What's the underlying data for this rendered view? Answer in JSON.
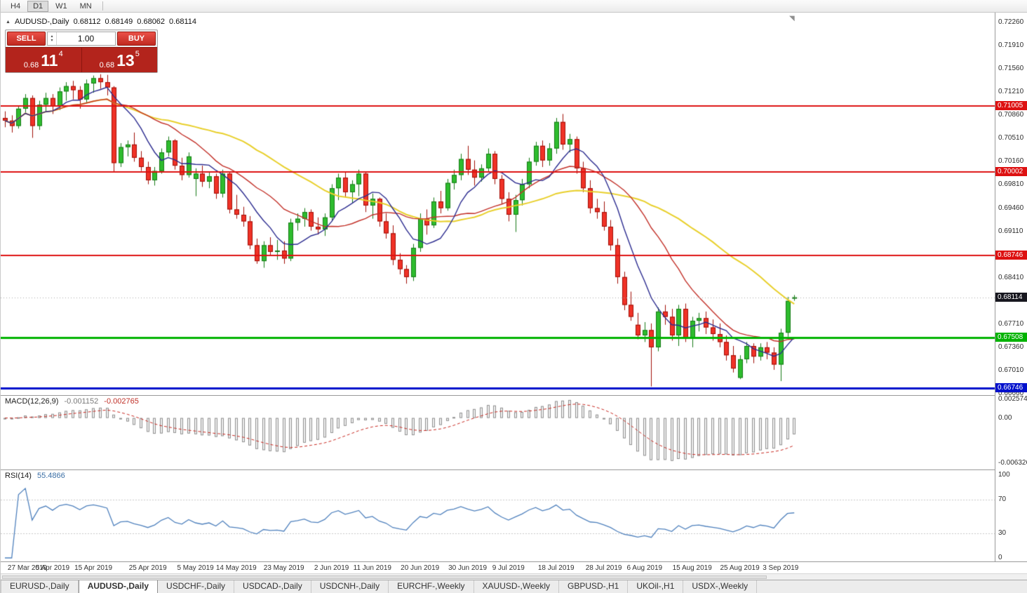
{
  "toolbar": {
    "timeframes": [
      {
        "label": "H4",
        "active": false
      },
      {
        "label": "D1",
        "active": true
      },
      {
        "label": "W1",
        "active": false
      },
      {
        "label": "MN",
        "active": false
      }
    ]
  },
  "chart_header": {
    "symbol": "AUDUSD-,Daily",
    "open": "0.68112",
    "high": "0.68149",
    "low": "0.68062",
    "close": "0.68114"
  },
  "trade_panel": {
    "sell_label": "SELL",
    "buy_label": "BUY",
    "volume": "1.00",
    "sell_price": {
      "prefix": "0.68",
      "big": "11",
      "sup": "4"
    },
    "buy_price": {
      "prefix": "0.68",
      "big": "13",
      "sup": "5"
    }
  },
  "macd_header": {
    "name": "MACD(12,26,9)",
    "main_value": "-0.001152",
    "signal_value": "-0.002765"
  },
  "rsi_header": {
    "name": "RSI(14)",
    "value": "55.4866"
  },
  "icons": {
    "oct_toggle": "▲",
    "spin_up": "▴",
    "spin_down": "▾",
    "shift_marker": "◥"
  },
  "tabs": [
    {
      "label": "EURUSD-,Daily",
      "active": false
    },
    {
      "label": "AUDUSD-,Daily",
      "active": true
    },
    {
      "label": "USDCHF-,Daily",
      "active": false
    },
    {
      "label": "USDCAD-,Daily",
      "active": false
    },
    {
      "label": "USDCNH-,Daily",
      "active": false
    },
    {
      "label": "EURCHF-,Weekly",
      "active": false
    },
    {
      "label": "XAUUSD-,Weekly",
      "active": false
    },
    {
      "label": "GBPUSD-,H1",
      "active": false
    },
    {
      "label": "UKOil-,H1",
      "active": false
    },
    {
      "label": "USDX-,Weekly",
      "active": false
    }
  ],
  "chart_data": {
    "type": "candlestick",
    "title": "AUDUSD-,Daily",
    "symbol": "AUDUSD-",
    "timeframe": "Daily",
    "current_price": {
      "value": 0.68114,
      "line_color": "#a8a8a8"
    },
    "candle_colors": {
      "up_fill": "#2ebc2e",
      "up_border": "#157a15",
      "down_fill": "#f03227",
      "down_border": "#a00d05"
    },
    "horizontal_lines": [
      {
        "price": 0.71005,
        "color": "#dd1111",
        "width": 2
      },
      {
        "price": 0.70002,
        "color": "#dd1111",
        "width": 2
      },
      {
        "price": 0.68746,
        "color": "#dd1111",
        "width": 2
      },
      {
        "price": 0.67508,
        "color": "#00b300",
        "width": 3
      },
      {
        "price": 0.66746,
        "color": "#0010cc",
        "width": 3
      }
    ],
    "y_axis": {
      "ticks": [
        "0.72260",
        "0.71910",
        "0.71560",
        "0.71210",
        "0.70860",
        "0.70510",
        "0.70160",
        "0.69810",
        "0.69460",
        "0.69110",
        "0.68410",
        "0.67710",
        "0.67360",
        "0.67010",
        "0.66660"
      ],
      "tags": [
        {
          "text": "0.71005",
          "price": 0.71005,
          "bg": "#dd1111"
        },
        {
          "text": "0.70002",
          "price": 0.70002,
          "bg": "#dd1111"
        },
        {
          "text": "0.68746",
          "price": 0.68746,
          "bg": "#dd1111"
        },
        {
          "text": "0.68114",
          "price": 0.68114,
          "bg": "#17171f"
        },
        {
          "text": "0.67508",
          "price": 0.67508,
          "bg": "#00b300"
        },
        {
          "text": "0.66746",
          "price": 0.66746,
          "bg": "#0010cc"
        }
      ]
    },
    "x_axis_labels": [
      {
        "label": "27 Mar 2019",
        "index": 0
      },
      {
        "label": "5 Apr 2019",
        "index": 7
      },
      {
        "label": "15 Apr 2019",
        "index": 13
      },
      {
        "label": "25 Apr 2019",
        "index": 21
      },
      {
        "label": "5 May 2019",
        "index": 28
      },
      {
        "label": "14 May 2019",
        "index": 34
      },
      {
        "label": "23 May 2019",
        "index": 41
      },
      {
        "label": "2 Jun 2019",
        "index": 48
      },
      {
        "label": "11 Jun 2019",
        "index": 54
      },
      {
        "label": "20 Jun 2019",
        "index": 61
      },
      {
        "label": "30 Jun 2019",
        "index": 68
      },
      {
        "label": "9 Jul 2019",
        "index": 74
      },
      {
        "label": "18 Jul 2019",
        "index": 81
      },
      {
        "label": "28 Jul 2019",
        "index": 88
      },
      {
        "label": "6 Aug 2019",
        "index": 94
      },
      {
        "label": "15 Aug 2019",
        "index": 101
      },
      {
        "label": "25 Aug 2019",
        "index": 108
      },
      {
        "label": "3 Sep 2019",
        "index": 114
      }
    ],
    "moving_averages": [
      {
        "name": "ma-slow",
        "period": 34,
        "color": "#e8cf2a",
        "width": 2
      },
      {
        "name": "ma-medium",
        "period": 17,
        "color": "#c23028",
        "width": 1.4
      },
      {
        "name": "ma-fast",
        "period": 8,
        "color": "#2b2b8f",
        "width": 1.4
      }
    ],
    "indicators": [
      {
        "type": "MACD",
        "params": [
          12,
          26,
          9
        ],
        "values": [
          -0.001152,
          -0.002765
        ],
        "histogram_fill": "#f0f0f0",
        "histogram_border": "#8f8f8f",
        "signal_color": "#c82820",
        "axis_labels": [
          {
            "text": "0.002574",
            "value": 0.002574
          },
          {
            "text": "0.00",
            "value": 0
          },
          {
            "text": "-0.006326",
            "value": -0.006326
          }
        ]
      },
      {
        "type": "RSI",
        "params": [
          14
        ],
        "value": 55.4866,
        "line_color": "#4f81bd",
        "levels": [
          70,
          30
        ],
        "axis_labels": [
          {
            "text": "100",
            "value": 100
          },
          {
            "text": "70",
            "value": 70
          },
          {
            "text": "30",
            "value": 30
          },
          {
            "text": "0",
            "value": 0
          }
        ]
      }
    ],
    "candles": [
      [
        0.7082,
        0.7092,
        0.7068,
        0.7078
      ],
      [
        0.7078,
        0.7086,
        0.706,
        0.707
      ],
      [
        0.707,
        0.71,
        0.7066,
        0.7096
      ],
      [
        0.7096,
        0.7118,
        0.709,
        0.7112
      ],
      [
        0.7112,
        0.7116,
        0.7052,
        0.707
      ],
      [
        0.707,
        0.7108,
        0.7064,
        0.7102
      ],
      [
        0.7102,
        0.712,
        0.7092,
        0.7112
      ],
      [
        0.7112,
        0.7118,
        0.7088,
        0.71
      ],
      [
        0.71,
        0.7128,
        0.7094,
        0.7122
      ],
      [
        0.7122,
        0.7136,
        0.7108,
        0.713
      ],
      [
        0.713,
        0.7138,
        0.711,
        0.7124
      ],
      [
        0.7124,
        0.713,
        0.7096,
        0.711
      ],
      [
        0.711,
        0.714,
        0.7104,
        0.7134
      ],
      [
        0.7134,
        0.7146,
        0.712,
        0.7142
      ],
      [
        0.7142,
        0.7148,
        0.7126,
        0.7136
      ],
      [
        0.7136,
        0.7147,
        0.7116,
        0.7128
      ],
      [
        0.7128,
        0.713,
        0.7,
        0.7014
      ],
      [
        0.7014,
        0.7044,
        0.7008,
        0.7038
      ],
      [
        0.7038,
        0.7048,
        0.7024,
        0.7042
      ],
      [
        0.7042,
        0.706,
        0.7016,
        0.7022
      ],
      [
        0.7022,
        0.7032,
        0.7002,
        0.7008
      ],
      [
        0.7008,
        0.7016,
        0.6982,
        0.6988
      ],
      [
        0.6988,
        0.7008,
        0.698,
        0.7002
      ],
      [
        0.7002,
        0.7036,
        0.6998,
        0.703
      ],
      [
        0.703,
        0.7054,
        0.7024,
        0.7048
      ],
      [
        0.7048,
        0.705,
        0.7004,
        0.701
      ],
      [
        0.701,
        0.7022,
        0.6988,
        0.6996
      ],
      [
        0.6996,
        0.703,
        0.6992,
        0.7024
      ],
      [
        0.699,
        0.7006,
        0.6964,
        0.6998
      ],
      [
        0.6998,
        0.701,
        0.6978,
        0.6986
      ],
      [
        0.6986,
        0.7,
        0.6976,
        0.6994
      ],
      [
        0.6994,
        0.6998,
        0.696,
        0.6968
      ],
      [
        0.6968,
        0.7004,
        0.6962,
        0.6998
      ],
      [
        0.6998,
        0.7,
        0.6938,
        0.6944
      ],
      [
        0.6944,
        0.6966,
        0.693,
        0.6936
      ],
      [
        0.6936,
        0.6948,
        0.6918,
        0.6926
      ],
      [
        0.6926,
        0.6934,
        0.6884,
        0.689
      ],
      [
        0.689,
        0.69,
        0.6862,
        0.6866
      ],
      [
        0.6866,
        0.6896,
        0.6856,
        0.689
      ],
      [
        0.689,
        0.6902,
        0.6874,
        0.688
      ],
      [
        0.688,
        0.6898,
        0.6868,
        0.6882
      ],
      [
        0.6882,
        0.6896,
        0.6862,
        0.687
      ],
      [
        0.687,
        0.693,
        0.6866,
        0.6924
      ],
      [
        0.6924,
        0.6938,
        0.6912,
        0.693
      ],
      [
        0.693,
        0.6946,
        0.6918,
        0.694
      ],
      [
        0.694,
        0.6944,
        0.6912,
        0.6918
      ],
      [
        0.6918,
        0.6932,
        0.6906,
        0.6914
      ],
      [
        0.6914,
        0.6938,
        0.6904,
        0.6932
      ],
      [
        0.6932,
        0.6982,
        0.6926,
        0.6976
      ],
      [
        0.6976,
        0.6998,
        0.6958,
        0.6992
      ],
      [
        0.6992,
        0.7,
        0.6962,
        0.697
      ],
      [
        0.697,
        0.6988,
        0.6954,
        0.6982
      ],
      [
        0.6982,
        0.7004,
        0.6964,
        0.6998
      ],
      [
        0.6998,
        0.7,
        0.694,
        0.695
      ],
      [
        0.695,
        0.6968,
        0.693,
        0.696
      ],
      [
        0.696,
        0.6962,
        0.6918,
        0.6926
      ],
      [
        0.6926,
        0.6938,
        0.69,
        0.6908
      ],
      [
        0.6908,
        0.692,
        0.686,
        0.6868
      ],
      [
        0.6868,
        0.6878,
        0.6846,
        0.6854
      ],
      [
        0.6854,
        0.686,
        0.6832,
        0.6842
      ],
      [
        0.6842,
        0.6892,
        0.6836,
        0.6886
      ],
      [
        0.6886,
        0.6938,
        0.688,
        0.693
      ],
      [
        0.693,
        0.6944,
        0.6906,
        0.692
      ],
      [
        0.692,
        0.6962,
        0.6916,
        0.6956
      ],
      [
        0.6956,
        0.6972,
        0.6938,
        0.6946
      ],
      [
        0.6946,
        0.699,
        0.6942,
        0.6984
      ],
      [
        0.6984,
        0.7004,
        0.6974,
        0.6996
      ],
      [
        0.6996,
        0.7028,
        0.6988,
        0.702
      ],
      [
        0.702,
        0.704,
        0.6996,
        0.7004
      ],
      [
        0.7004,
        0.7018,
        0.698,
        0.6992
      ],
      [
        0.6992,
        0.7012,
        0.6986,
        0.7006
      ],
      [
        0.7006,
        0.7036,
        0.7,
        0.7028
      ],
      [
        0.7028,
        0.7032,
        0.6982,
        0.699
      ],
      [
        0.699,
        0.6996,
        0.6952,
        0.696
      ],
      [
        0.696,
        0.697,
        0.6926,
        0.6936
      ],
      [
        0.6936,
        0.6966,
        0.691,
        0.6958
      ],
      [
        0.6958,
        0.699,
        0.695,
        0.6982
      ],
      [
        0.6982,
        0.7022,
        0.6976,
        0.7016
      ],
      [
        0.7016,
        0.7046,
        0.701,
        0.704
      ],
      [
        0.704,
        0.7048,
        0.7008,
        0.7018
      ],
      [
        0.7018,
        0.7044,
        0.701,
        0.7036
      ],
      [
        0.7036,
        0.7082,
        0.7028,
        0.7076
      ],
      [
        0.7076,
        0.7088,
        0.7034,
        0.7042
      ],
      [
        0.7042,
        0.7058,
        0.703,
        0.705
      ],
      [
        0.705,
        0.7054,
        0.6998,
        0.7006
      ],
      [
        0.7006,
        0.7016,
        0.697,
        0.6976
      ],
      [
        0.6976,
        0.6988,
        0.6938,
        0.6946
      ],
      [
        0.6946,
        0.696,
        0.693,
        0.694
      ],
      [
        0.694,
        0.6956,
        0.6912,
        0.6918
      ],
      [
        0.6918,
        0.6928,
        0.6882,
        0.689
      ],
      [
        0.689,
        0.69,
        0.6832,
        0.6842
      ],
      [
        0.6842,
        0.685,
        0.6792,
        0.68
      ],
      [
        0.68,
        0.682,
        0.6776,
        0.6782
      ],
      [
        0.677,
        0.6788,
        0.6748,
        0.6754
      ],
      [
        0.6754,
        0.6774,
        0.6744,
        0.6762
      ],
      [
        0.6762,
        0.6772,
        0.6677,
        0.6736
      ],
      [
        0.6736,
        0.6796,
        0.673,
        0.679
      ],
      [
        0.679,
        0.68,
        0.677,
        0.6782
      ],
      [
        0.6782,
        0.6794,
        0.6746,
        0.6754
      ],
      [
        0.6754,
        0.68,
        0.6738,
        0.6794
      ],
      [
        0.6794,
        0.6802,
        0.6744,
        0.675
      ],
      [
        0.675,
        0.6782,
        0.6736,
        0.6776
      ],
      [
        0.6776,
        0.6788,
        0.676,
        0.678
      ],
      [
        0.678,
        0.679,
        0.6756,
        0.6766
      ],
      [
        0.6766,
        0.6778,
        0.6746,
        0.6756
      ],
      [
        0.6756,
        0.6772,
        0.6736,
        0.6744
      ],
      [
        0.6744,
        0.6754,
        0.6716,
        0.6724
      ],
      [
        0.6724,
        0.6738,
        0.6698,
        0.6704
      ],
      [
        0.669,
        0.6724,
        0.6688,
        0.6718
      ],
      [
        0.6718,
        0.6744,
        0.6712,
        0.6738
      ],
      [
        0.6738,
        0.6742,
        0.6712,
        0.6722
      ],
      [
        0.6722,
        0.6742,
        0.6716,
        0.6736
      ],
      [
        0.6736,
        0.6744,
        0.6718,
        0.6728
      ],
      [
        0.6728,
        0.6736,
        0.6702,
        0.671
      ],
      [
        0.671,
        0.6764,
        0.6685,
        0.6758
      ],
      [
        0.6758,
        0.6812,
        0.6752,
        0.6806
      ],
      [
        0.68112,
        0.68149,
        0.68062,
        0.68114
      ]
    ]
  }
}
